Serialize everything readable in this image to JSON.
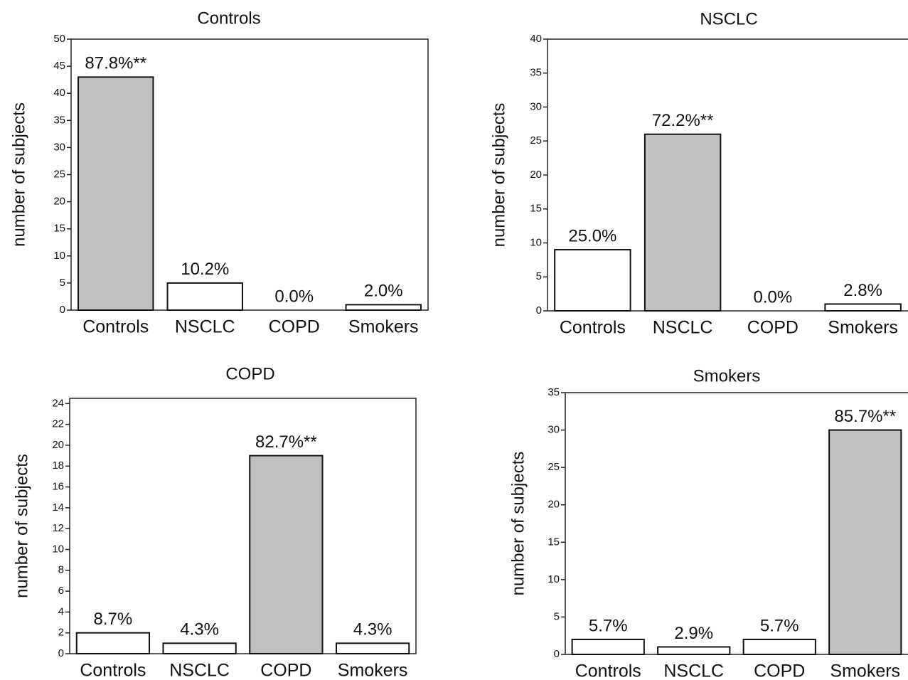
{
  "chart_data": [
    {
      "type": "bar",
      "title": "Controls",
      "y_label": "number of subjects",
      "categories": [
        "Controls",
        "NSCLC",
        "COPD",
        "Smokers"
      ],
      "values": [
        43,
        5,
        0,
        1
      ],
      "annotations": [
        "87.8%**",
        "10.2%",
        "0.0%",
        "2.0%"
      ],
      "colors": [
        "#c0c0c0",
        "#ffffff",
        "#ffffff",
        "#ffffff"
      ],
      "ylim": [
        0,
        50
      ],
      "yticks": [
        0,
        5,
        10,
        15,
        20,
        25,
        30,
        35,
        40,
        45,
        50
      ]
    },
    {
      "type": "bar",
      "title": "NSCLC",
      "y_label": "number of subjects",
      "categories": [
        "Controls",
        "NSCLC",
        "COPD",
        "Smokers"
      ],
      "values": [
        9,
        26,
        0,
        1
      ],
      "annotations": [
        "25.0%",
        "72.2%**",
        "0.0%",
        "2.8%"
      ],
      "colors": [
        "#ffffff",
        "#c0c0c0",
        "#ffffff",
        "#ffffff"
      ],
      "ylim": [
        0,
        40
      ],
      "yticks": [
        0,
        5,
        10,
        15,
        20,
        25,
        30,
        35,
        40
      ]
    },
    {
      "type": "bar",
      "title": "COPD",
      "y_label": "number of subjects",
      "categories": [
        "Controls",
        "NSCLC",
        "COPD",
        "Smokers"
      ],
      "values": [
        2,
        1,
        19,
        1
      ],
      "annotations": [
        "8.7%",
        "4.3%",
        "82.7%**",
        "4.3%"
      ],
      "colors": [
        "#ffffff",
        "#ffffff",
        "#c0c0c0",
        "#ffffff"
      ],
      "ylim": [
        0,
        24.5
      ],
      "yticks": [
        0,
        2,
        4,
        6,
        8,
        10,
        12,
        14,
        16,
        18,
        20,
        22,
        24
      ]
    },
    {
      "type": "bar",
      "title": "Smokers",
      "y_label": "number of subjects",
      "categories": [
        "Controls",
        "NSCLC",
        "COPD",
        "Smokers"
      ],
      "values": [
        2,
        1,
        2,
        30
      ],
      "annotations": [
        "5.7%",
        "2.9%",
        "5.7%",
        "85.7%**"
      ],
      "colors": [
        "#ffffff",
        "#ffffff",
        "#ffffff",
        "#c0c0c0"
      ],
      "ylim": [
        0,
        35
      ],
      "yticks": [
        0,
        5,
        10,
        15,
        20,
        25,
        30,
        35
      ]
    }
  ]
}
